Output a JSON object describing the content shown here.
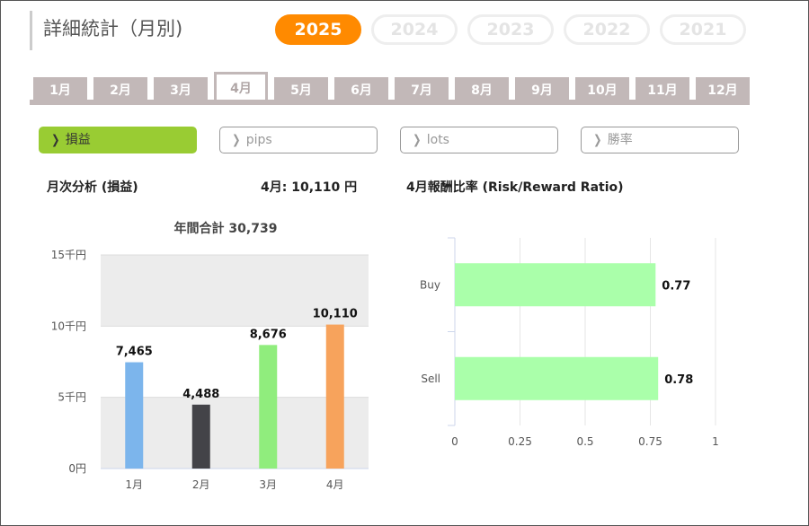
{
  "title": "詳細統計（月別)",
  "years": [
    {
      "label": "2025",
      "active": true
    },
    {
      "label": "2024",
      "active": false
    },
    {
      "label": "2023",
      "active": false
    },
    {
      "label": "2022",
      "active": false
    },
    {
      "label": "2021",
      "active": false
    }
  ],
  "months": [
    {
      "label": "1月",
      "active": false
    },
    {
      "label": "2月",
      "active": false
    },
    {
      "label": "3月",
      "active": false
    },
    {
      "label": "4月",
      "active": true
    },
    {
      "label": "5月",
      "active": false
    },
    {
      "label": "6月",
      "active": false
    },
    {
      "label": "7月",
      "active": false
    },
    {
      "label": "8月",
      "active": false
    },
    {
      "label": "9月",
      "active": false
    },
    {
      "label": "10月",
      "active": false
    },
    {
      "label": "11月",
      "active": false
    },
    {
      "label": "12月",
      "active": false
    }
  ],
  "metrics": [
    {
      "label": "損益",
      "active": true
    },
    {
      "label": "pips",
      "active": false
    },
    {
      "label": "lots",
      "active": false
    },
    {
      "label": "勝率",
      "active": false
    }
  ],
  "summary": {
    "monthly_analysis_label": "月次分析 (損益)",
    "month_value": "4月:  10,110 円",
    "ratio_title": "4月報酬比率 (Risk/Reward Ratio)"
  },
  "chart_data": [
    {
      "type": "bar",
      "title": "年間合計 30,739",
      "categories": [
        "1月",
        "2月",
        "3月",
        "4月"
      ],
      "values": [
        7465,
        4488,
        8676,
        10110
      ],
      "value_labels": [
        "7,465",
        "4,488",
        "8,676",
        "10,110"
      ],
      "colors": [
        "#7cb5ec",
        "#434348",
        "#90ed7d",
        "#f7a35c"
      ],
      "ylim": [
        0,
        15000
      ],
      "yticks": [
        0,
        5000,
        10000,
        15000
      ],
      "ytick_labels": [
        "0円",
        "5千円",
        "10千円",
        "15千円"
      ],
      "grid": true,
      "band_color": "#ececec"
    },
    {
      "type": "bar",
      "orientation": "horizontal",
      "categories": [
        "Buy",
        "Sell"
      ],
      "values": [
        0.77,
        0.78
      ],
      "value_labels": [
        "0.77",
        "0.78"
      ],
      "color": "#aaffaa",
      "xlim": [
        0,
        1
      ],
      "xticks": [
        0,
        0.25,
        0.5,
        0.75,
        1
      ],
      "xtick_labels": [
        "0",
        "0.25",
        "0.5",
        "0.75",
        "1"
      ],
      "grid": true
    }
  ]
}
